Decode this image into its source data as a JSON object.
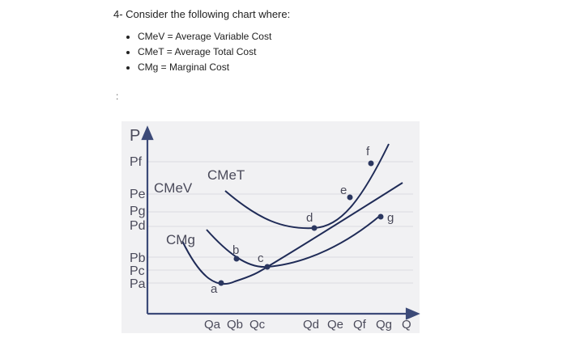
{
  "header": {
    "title": "4- Consider the following chart where:"
  },
  "definitions": [
    "CMeV = Average Variable Cost",
    "CMeT = Average Total Cost",
    "CMg = Marginal Cost"
  ],
  "marker": ":",
  "chart": {
    "y_axis": "P",
    "price_labels": [
      "Pf",
      "Pe",
      "Pg",
      "Pd",
      "Pb",
      "Pc",
      "Pa"
    ],
    "curves": [
      "CMeV",
      "CMeT",
      "CMg"
    ],
    "points": [
      "a",
      "b",
      "c",
      "d",
      "e",
      "f",
      "g"
    ],
    "x_labels": [
      "Qa",
      "Qb",
      "Qc",
      "Qd",
      "Qe",
      "Qf",
      "Qg",
      "Q"
    ]
  }
}
